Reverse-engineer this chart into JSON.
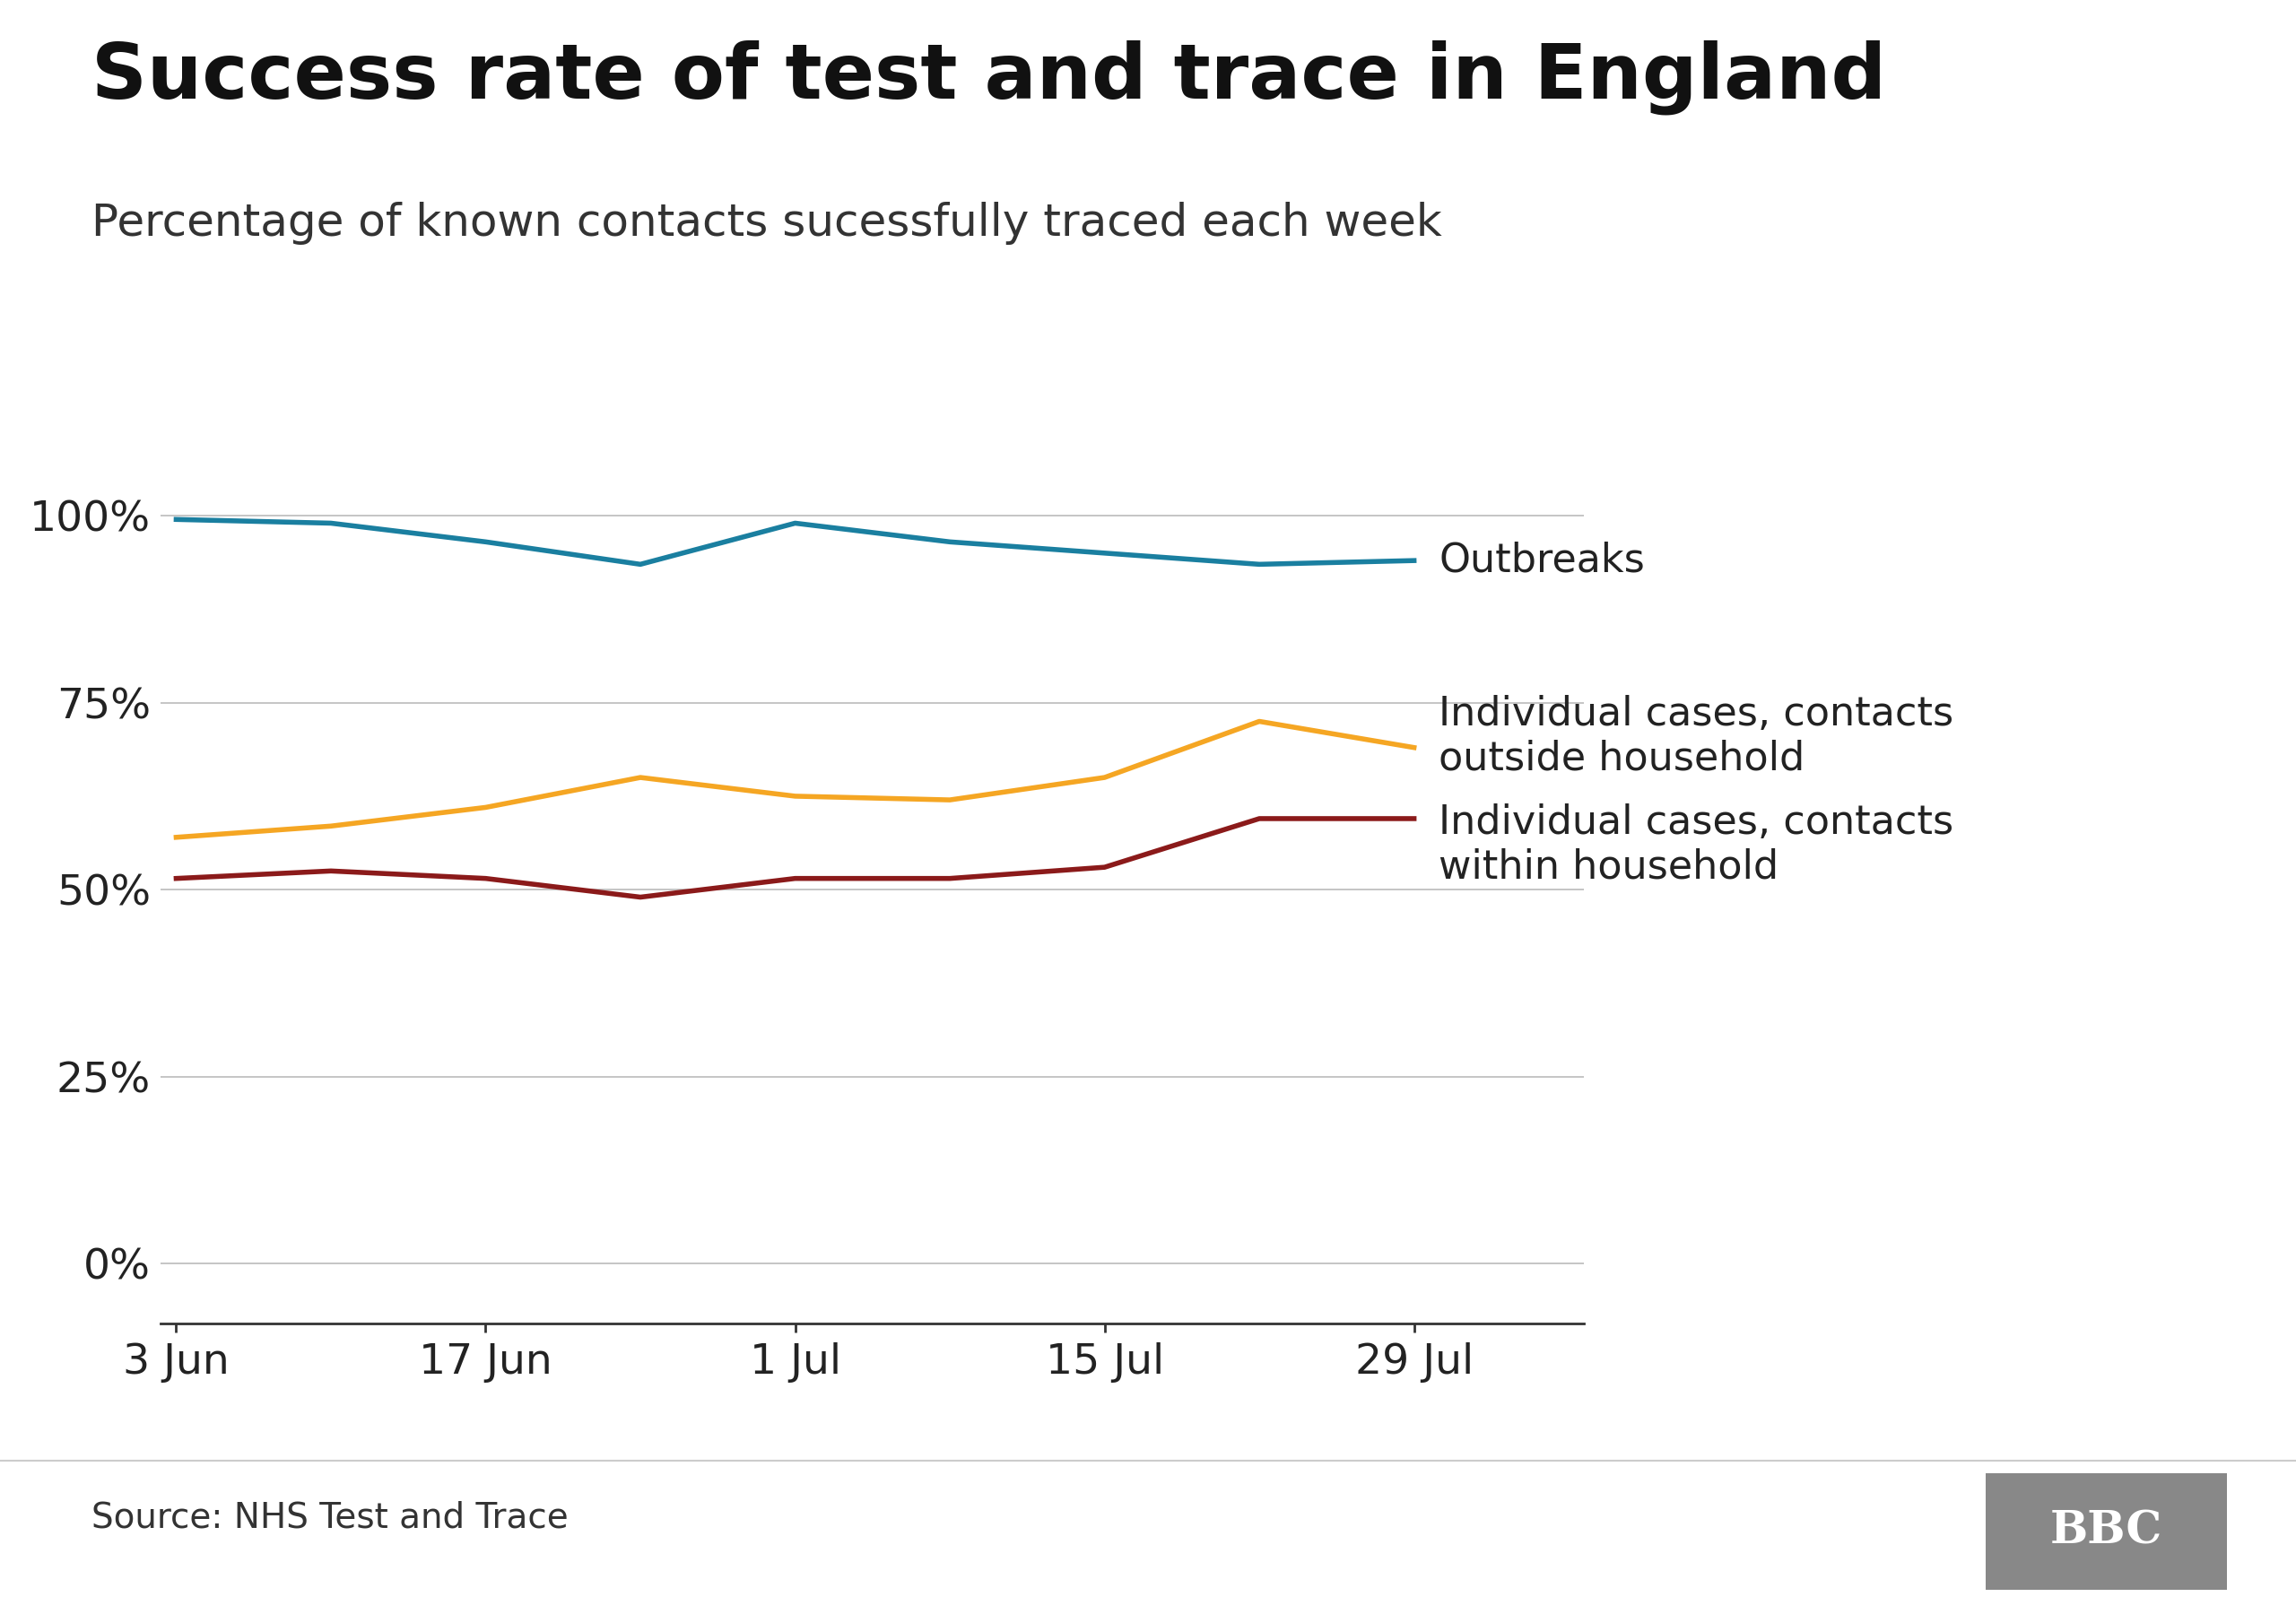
{
  "title": "Success rate of test and trace in England",
  "subtitle": "Percentage of known contacts sucessfully traced each week",
  "source": "Source: NHS Test and Trace",
  "x_labels": [
    "3 Jun",
    "17 Jun",
    "1 Jul",
    "15 Jul",
    "29 Jul"
  ],
  "x_values": [
    0,
    1,
    2,
    3,
    4
  ],
  "outbreaks": [
    99.5,
    99.0,
    96.5,
    93.5,
    99.0,
    96.5,
    95.0,
    93.5,
    94.0
  ],
  "outside_household": [
    57.0,
    58.5,
    61.0,
    65.0,
    62.5,
    62.0,
    65.0,
    72.5,
    69.0
  ],
  "within_household": [
    51.5,
    52.5,
    51.5,
    49.0,
    51.5,
    51.5,
    53.0,
    59.5,
    59.5
  ],
  "outbreaks_color": "#1a7fa0",
  "outside_color": "#f5a623",
  "within_color": "#8b1a1a",
  "grid_color": "#bbbbbb",
  "bg_color": "#ffffff",
  "title_fontsize": 62,
  "subtitle_fontsize": 36,
  "tick_fontsize": 34,
  "annotation_fontsize": 32,
  "source_fontsize": 28,
  "line_width": 4.0,
  "yticks": [
    0,
    25,
    50,
    75,
    100
  ],
  "ylim": [
    -8,
    115
  ],
  "xlim_right": 4.55,
  "outbreaks_label": "Outbreaks",
  "outside_label": "Individual cases, contacts\noutside household",
  "within_label": "Individual cases, contacts\nwithin household",
  "bbc_bg": "#888888"
}
